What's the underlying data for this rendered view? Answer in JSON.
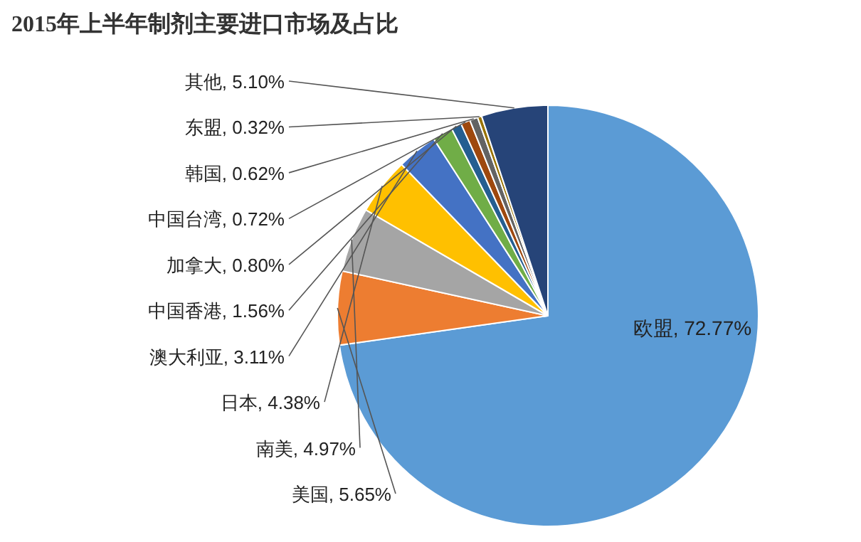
{
  "chart_data": {
    "type": "pie",
    "title": "2015年上半年制剂主要进口市场及占比",
    "categories": [
      "欧盟",
      "美国",
      "南美",
      "日本",
      "澳大利亚",
      "中国香港",
      "加拿大",
      "中国台湾",
      "韩国",
      "东盟",
      "其他"
    ],
    "values": [
      72.77,
      5.65,
      4.97,
      4.38,
      3.11,
      1.56,
      0.8,
      0.72,
      0.62,
      0.32,
      5.1
    ],
    "colors": [
      "#5b9bd5",
      "#ed7d31",
      "#a5a5a5",
      "#ffc000",
      "#4472c4",
      "#70ad47",
      "#255e91",
      "#9e480e",
      "#636363",
      "#997300",
      "#264478"
    ],
    "value_labels": [
      ", 72.77%",
      ", 5.65%",
      ", 4.97%",
      ", 4.38%",
      ", 3.11%",
      ", 1.56%",
      ", 0.80%",
      ", 0.72%",
      ", 0.62%",
      ", 0.32%",
      ", 5.10%"
    ]
  }
}
